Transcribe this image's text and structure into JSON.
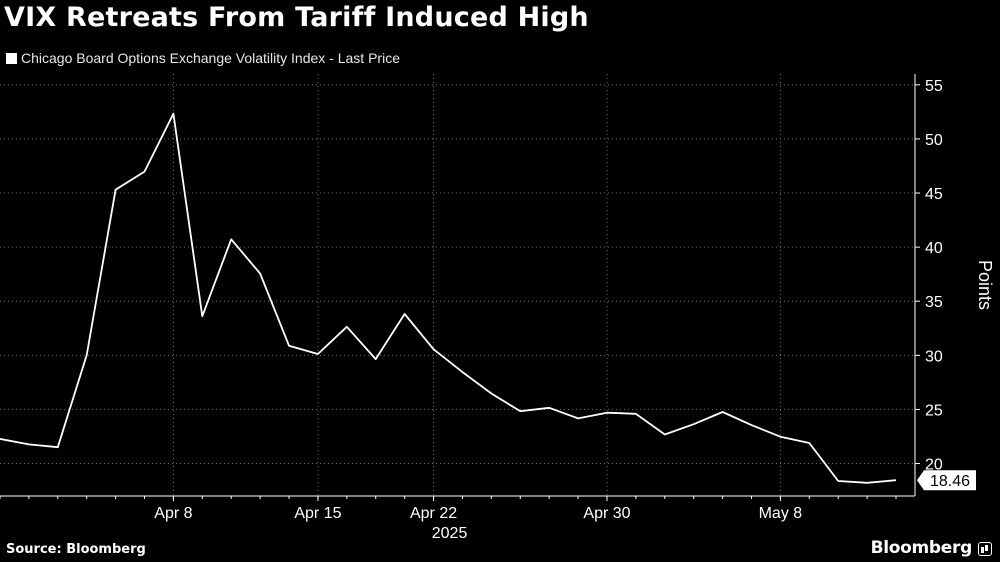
{
  "title": "VIX Retreats From Tariff Induced High",
  "legend": {
    "label": "Chicago Board Options Exchange Volatility Index - Last Price",
    "color": "#ffffff"
  },
  "source": "Source: Bloomberg",
  "brand": "Bloomberg",
  "colors": {
    "background": "#000000",
    "line": "#ffffff",
    "grid": "#6e6e6e"
  },
  "chart_data": {
    "type": "line",
    "title": "VIX Retreats From Tariff Induced High",
    "ylabel": "Points",
    "xlabel": "2025",
    "ylim": [
      17,
      56
    ],
    "yticks": [
      20,
      25,
      30,
      35,
      40,
      45,
      50,
      55
    ],
    "grid": true,
    "y_axis_side": "right",
    "x_tick_labels": [
      {
        "date": "2025-04-08",
        "label": "Apr 8"
      },
      {
        "date": "2025-04-15",
        "label": "Apr 15"
      },
      {
        "date": "2025-04-22",
        "label": "Apr 22"
      },
      {
        "date": "2025-04-30",
        "label": "Apr 30"
      },
      {
        "date": "2025-05-08",
        "label": "May 8"
      }
    ],
    "year_label": "2025",
    "last_value_label": "18.46",
    "series": [
      {
        "name": "Chicago Board Options Exchange Volatility Index - Last Price",
        "x": [
          "2025-03-31",
          "2025-04-01",
          "2025-04-02",
          "2025-04-03",
          "2025-04-04",
          "2025-04-07",
          "2025-04-08",
          "2025-04-09",
          "2025-04-10",
          "2025-04-11",
          "2025-04-14",
          "2025-04-15",
          "2025-04-16",
          "2025-04-17",
          "2025-04-21",
          "2025-04-22",
          "2025-04-23",
          "2025-04-24",
          "2025-04-25",
          "2025-04-28",
          "2025-04-29",
          "2025-04-30",
          "2025-05-01",
          "2025-05-02",
          "2025-05-05",
          "2025-05-06",
          "2025-05-07",
          "2025-05-08",
          "2025-05-09",
          "2025-05-12",
          "2025-05-13",
          "2025-05-14"
        ],
        "values": [
          22.28,
          21.77,
          21.51,
          30.02,
          45.31,
          46.98,
          52.33,
          33.62,
          40.72,
          37.56,
          30.89,
          30.12,
          32.64,
          29.65,
          33.82,
          30.57,
          28.45,
          26.47,
          24.84,
          25.15,
          24.17,
          24.7,
          24.6,
          22.68,
          23.64,
          24.76,
          23.55,
          22.48,
          21.9,
          18.39,
          18.22,
          18.46
        ]
      }
    ]
  }
}
